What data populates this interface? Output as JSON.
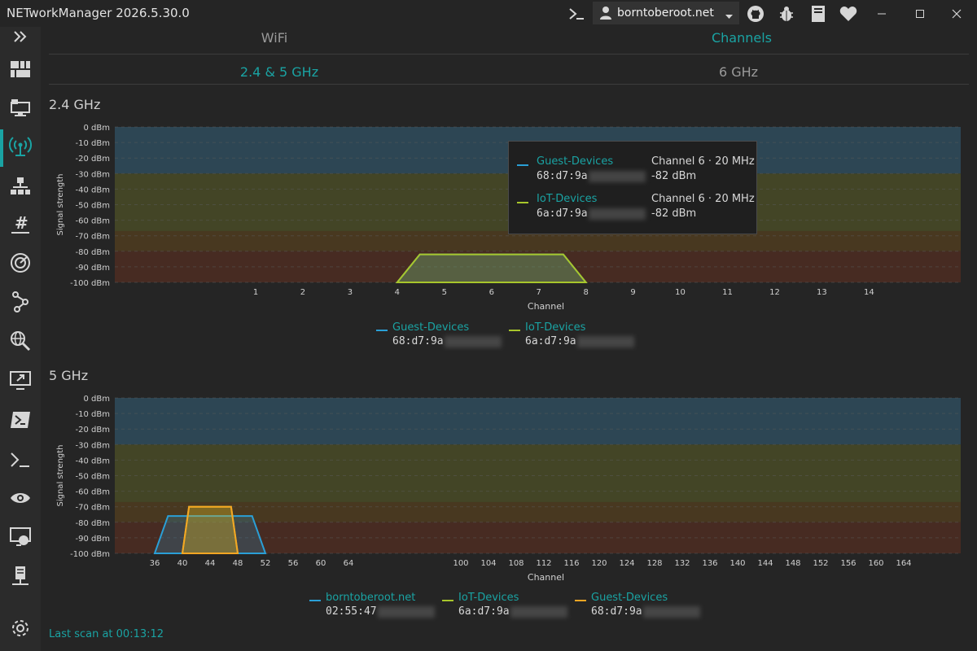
{
  "window": {
    "title": "NETworkManager 2026.5.30.0",
    "profile": "borntoberoot.net",
    "accent": "#1aa3a3"
  },
  "tabs": {
    "main": [
      {
        "label": "WiFi",
        "active": false
      },
      {
        "label": "Channels",
        "active": true
      }
    ],
    "sub": [
      {
        "label": "2.4 & 5 GHz",
        "active": true
      },
      {
        "label": "6 GHz",
        "active": false
      }
    ]
  },
  "sections": {
    "band24_title": "2.4 GHz",
    "band5_title": "5 GHz"
  },
  "tooltip": {
    "rows": [
      {
        "ssid": "Guest-Devices",
        "bssid": "68:d7:9a",
        "channel": "Channel 6 · 20 MHz",
        "dbm": "-82 dBm",
        "color": "#2a9fd6"
      },
      {
        "ssid": "IoT-Devices",
        "bssid": "6a:d7:9a",
        "channel": "Channel 6 · 20 MHz",
        "dbm": "-82 dBm",
        "color": "#a8c62b"
      }
    ]
  },
  "status": {
    "last_scan": "Last scan at 00:13:12"
  },
  "icons": [
    "expand-icon",
    "dashboard-icon",
    "network-interface-icon",
    "wifi-icon",
    "ip-scanner-icon",
    "subnet-icon",
    "port-scanner-icon",
    "traceroute-icon",
    "dns-lookup-icon",
    "remote-desktop-icon",
    "powershell-icon",
    "terminal-icon",
    "ping-monitor-icon",
    "web-console-icon",
    "server-icon",
    "settings-icon"
  ],
  "chart_data": [
    {
      "type": "area",
      "band": "2.4 GHz",
      "xlabel": "Channel",
      "ylabel": "Signal strength",
      "ylim": [
        -100,
        0
      ],
      "y_ticks": [
        "0 dBm",
        "-10 dBm",
        "-20 dBm",
        "-30 dBm",
        "-40 dBm",
        "-50 dBm",
        "-60 dBm",
        "-70 dBm",
        "-80 dBm",
        "-90 dBm",
        "-100 dBm"
      ],
      "x_ticks": [
        "1",
        "2",
        "3",
        "4",
        "5",
        "6",
        "7",
        "8",
        "9",
        "10",
        "11",
        "12",
        "13",
        "14"
      ],
      "zones": [
        {
          "from": 0,
          "to": -30,
          "color": "#2d4654"
        },
        {
          "from": -30,
          "to": -67,
          "color": "#434526"
        },
        {
          "from": -67,
          "to": -80,
          "color": "#483820"
        },
        {
          "from": -80,
          "to": -100,
          "color": "#472b22"
        }
      ],
      "series": [
        {
          "name": "Guest-Devices",
          "bssid": "68:d7:9a",
          "channel": 6,
          "width_mhz": 20,
          "dbm": -82,
          "color": "#2a9fd6"
        },
        {
          "name": "IoT-Devices",
          "bssid": "6a:d7:9a",
          "channel": 6,
          "width_mhz": 20,
          "dbm": -82,
          "color": "#a8c62b"
        }
      ]
    },
    {
      "type": "area",
      "band": "5 GHz",
      "xlabel": "Channel",
      "ylabel": "Signal strength",
      "ylim": [
        -100,
        0
      ],
      "y_ticks": [
        "0 dBm",
        "-10 dBm",
        "-20 dBm",
        "-30 dBm",
        "-40 dBm",
        "-50 dBm",
        "-60 dBm",
        "-70 dBm",
        "-80 dBm",
        "-90 dBm",
        "-100 dBm"
      ],
      "x_ticks": [
        "36",
        "40",
        "44",
        "48",
        "52",
        "56",
        "60",
        "64",
        "100",
        "104",
        "108",
        "112",
        "116",
        "120",
        "124",
        "128",
        "132",
        "136",
        "140",
        "144",
        "148",
        "152",
        "156",
        "160",
        "164"
      ],
      "zones": [
        {
          "from": 0,
          "to": -30,
          "color": "#2d4654"
        },
        {
          "from": -30,
          "to": -67,
          "color": "#434526"
        },
        {
          "from": -67,
          "to": -80,
          "color": "#483820"
        },
        {
          "from": -80,
          "to": -100,
          "color": "#472b22"
        }
      ],
      "series": [
        {
          "name": "borntoberoot.net",
          "bssid": "02:55:47",
          "channel": 44,
          "width_mhz": 80,
          "dbm": -76,
          "color": "#2a9fd6"
        },
        {
          "name": "IoT-Devices",
          "bssid": "6a:d7:9a",
          "channel": 44,
          "width_mhz": 40,
          "dbm": -70,
          "color": "#a8c62b"
        },
        {
          "name": "Guest-Devices",
          "bssid": "68:d7:9a",
          "channel": 44,
          "width_mhz": 40,
          "dbm": -70,
          "color": "#f5a623"
        }
      ]
    }
  ]
}
